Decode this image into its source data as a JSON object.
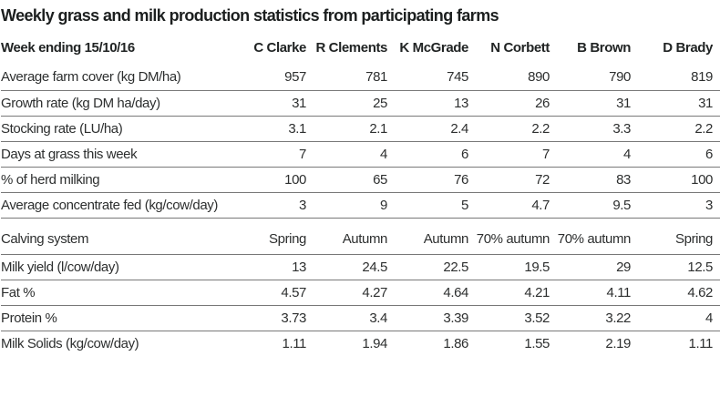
{
  "chart_data": {
    "type": "table",
    "title": "Weekly grass and milk production statistics from participating farms",
    "header_label": "Week ending 15/10/16",
    "columns": [
      "C Clarke",
      "R Clements",
      "K McGrade",
      "N Corbett",
      "B Brown",
      "D Brady"
    ],
    "rows": [
      {
        "label": "Average farm cover (kg DM/ha)",
        "values": [
          "957",
          "781",
          "745",
          "890",
          "790",
          "819"
        ]
      },
      {
        "label": "Growth rate (kg DM ha/day)",
        "values": [
          "31",
          "25",
          "13",
          "26",
          "31",
          "31"
        ]
      },
      {
        "label": "Stocking rate (LU/ha)",
        "values": [
          "3.1",
          "2.1",
          "2.4",
          "2.2",
          "3.3",
          "2.2"
        ]
      },
      {
        "label": "Days at grass this week",
        "values": [
          "7",
          "4",
          "6",
          "7",
          "4",
          "6"
        ]
      },
      {
        "label": "% of herd milking",
        "values": [
          "100",
          "65",
          "76",
          "72",
          "83",
          "100"
        ]
      },
      {
        "label": "Average concentrate fed (kg/cow/day)",
        "values": [
          "3",
          "9",
          "5",
          "4.7",
          "9.5",
          "3"
        ]
      },
      {
        "label": "Calving system",
        "values": [
          "Spring",
          "Autumn",
          "Autumn",
          "70% autumn",
          "70% autumn",
          "Spring"
        ]
      },
      {
        "label": "Milk yield (l/cow/day)",
        "values": [
          "13",
          "24.5",
          "22.5",
          "19.5",
          "29",
          "12.5"
        ]
      },
      {
        "label": "Fat %",
        "values": [
          "4.57",
          "4.27",
          "4.64",
          "4.21",
          "4.11",
          "4.62"
        ]
      },
      {
        "label": "Protein %",
        "values": [
          "3.73",
          "3.4",
          "3.39",
          "3.52",
          "3.22",
          "4"
        ]
      },
      {
        "label": "Milk Solids (kg/cow/day)",
        "values": [
          "1.11",
          "1.94",
          "1.86",
          "1.55",
          "2.19",
          "1.11"
        ]
      }
    ],
    "layout": {
      "grid": "horizontal rules between data rows only",
      "alignment": "labels left, values right"
    }
  },
  "colors": {
    "background": "#ffffff",
    "text": "#2d2f2f",
    "title_text": "#1c1f1f",
    "rule": "#787878"
  }
}
